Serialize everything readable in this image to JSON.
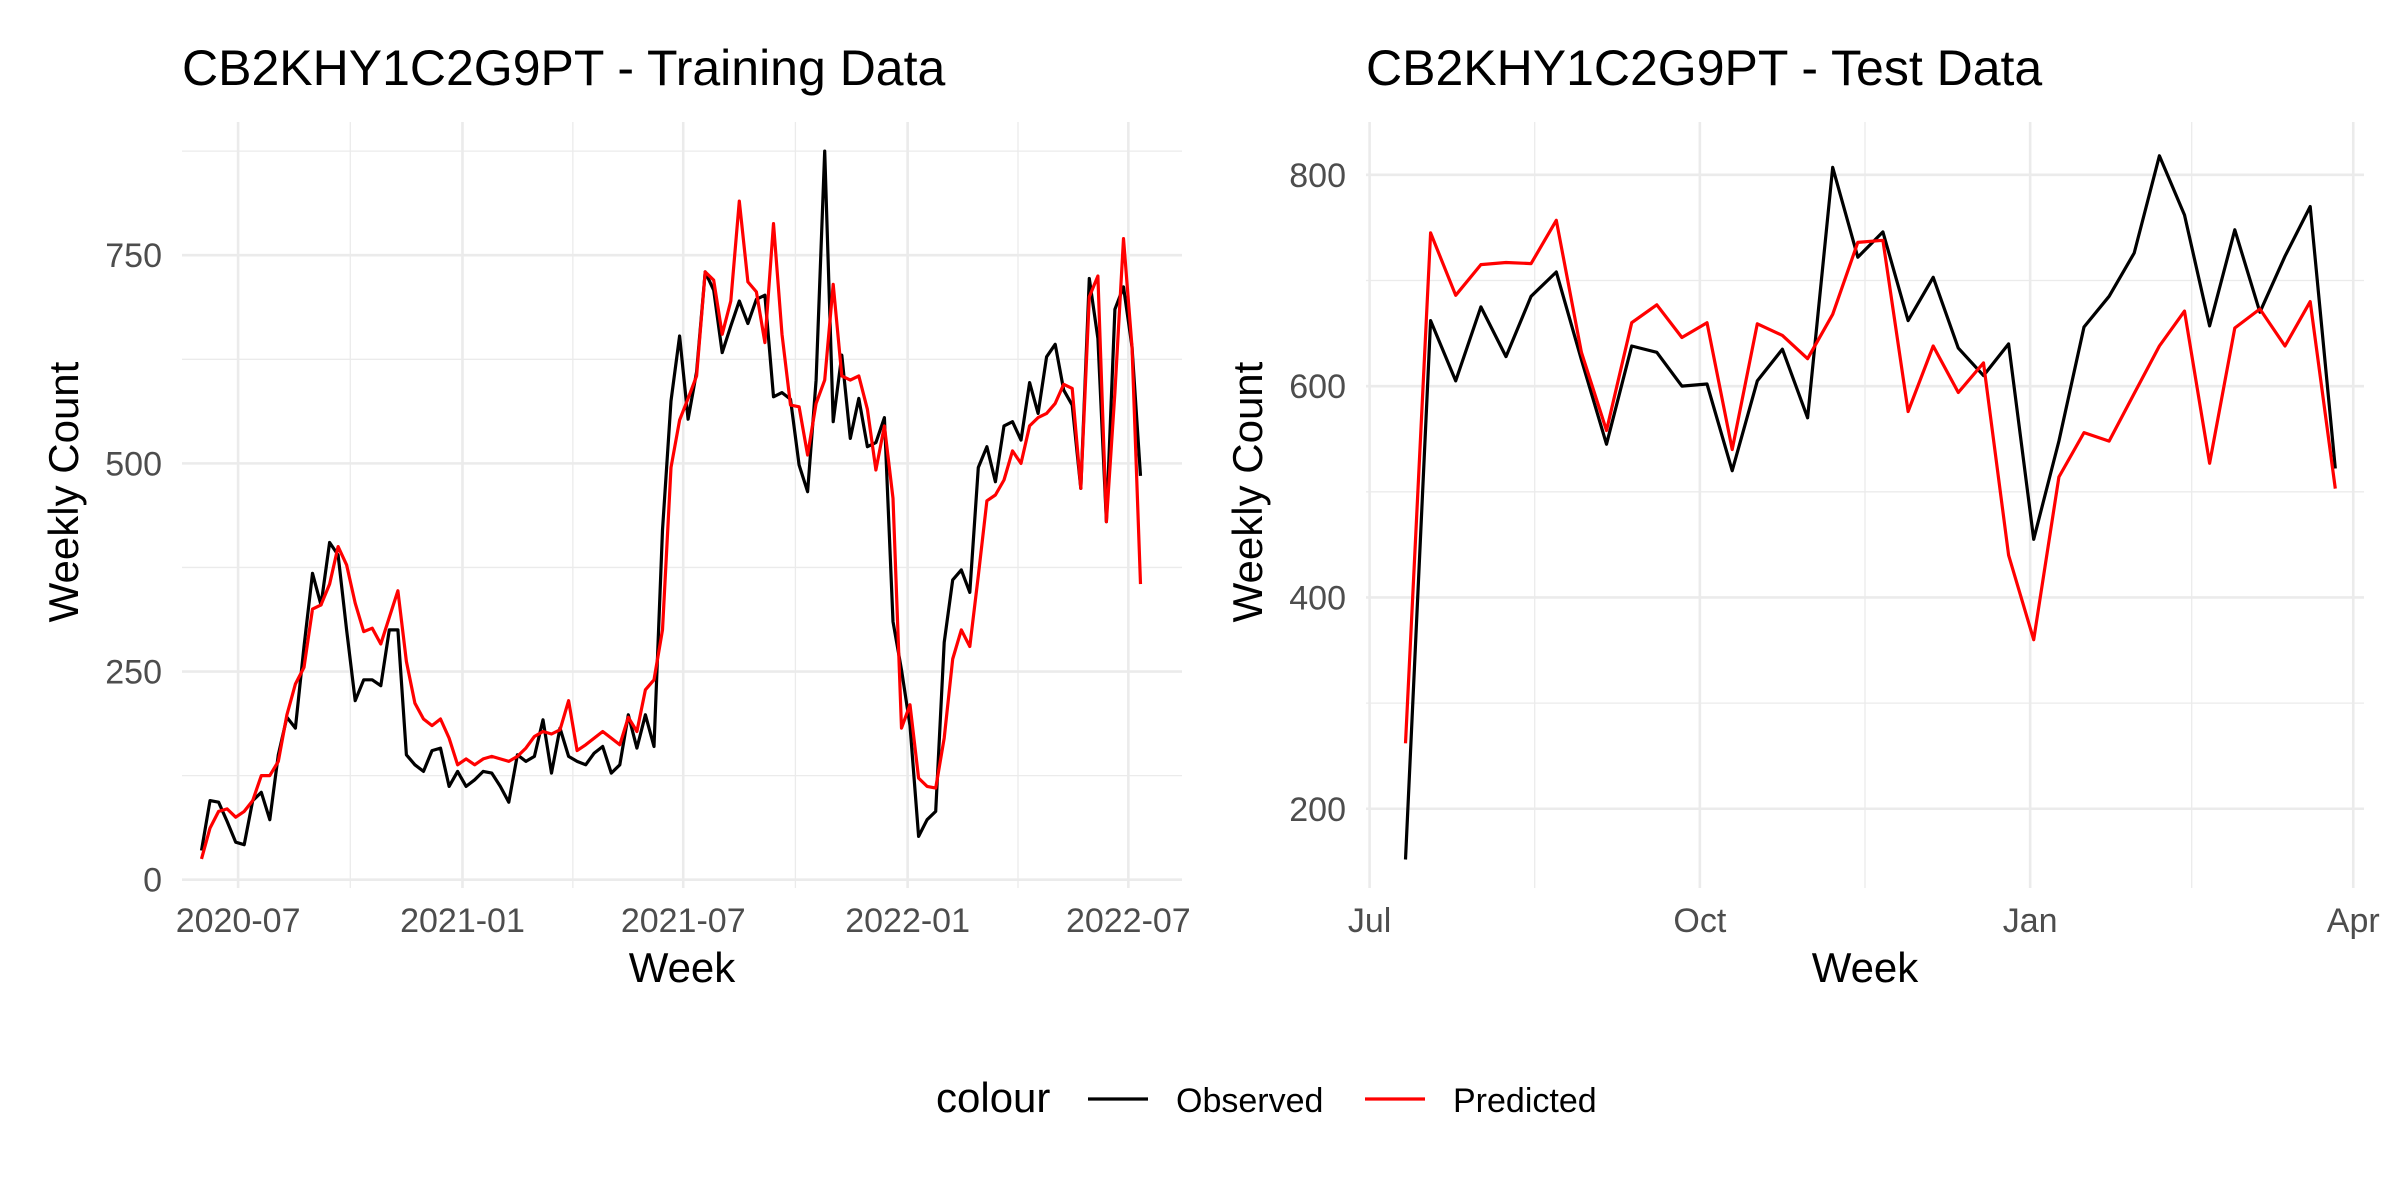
{
  "chart_data": [
    {
      "type": "line",
      "title": "CB2KHY1C2G9PT - Training Data",
      "xlabel": "Week",
      "ylabel": "Weekly Count",
      "x_axis": "date",
      "xlim": [
        "2020-05-16",
        "2022-08-14"
      ],
      "ylim": [
        -10,
        910
      ],
      "x_ticks": [
        {
          "date": "2020-07-01",
          "label": "2020-07"
        },
        {
          "date": "2021-01-01",
          "label": "2021-01"
        },
        {
          "date": "2021-07-01",
          "label": "2021-07"
        },
        {
          "date": "2022-01-01",
          "label": "2022-01"
        },
        {
          "date": "2022-07-01",
          "label": "2022-07"
        }
      ],
      "y_ticks": [
        0,
        250,
        500,
        750
      ],
      "grid": true,
      "x": [
        "2020-06-01",
        "2020-06-08",
        "2020-06-15",
        "2020-06-22",
        "2020-06-29",
        "2020-07-06",
        "2020-07-13",
        "2020-07-20",
        "2020-07-27",
        "2020-08-03",
        "2020-08-10",
        "2020-08-17",
        "2020-08-24",
        "2020-08-31",
        "2020-09-07",
        "2020-09-14",
        "2020-09-21",
        "2020-09-28",
        "2020-10-05",
        "2020-10-12",
        "2020-10-19",
        "2020-10-26",
        "2020-11-02",
        "2020-11-09",
        "2020-11-16",
        "2020-11-23",
        "2020-11-30",
        "2020-12-07",
        "2020-12-14",
        "2020-12-21",
        "2020-12-28",
        "2021-01-04",
        "2021-01-11",
        "2021-01-18",
        "2021-01-25",
        "2021-02-01",
        "2021-02-08",
        "2021-02-15",
        "2021-02-22",
        "2021-03-01",
        "2021-03-08",
        "2021-03-15",
        "2021-03-22",
        "2021-03-29",
        "2021-04-05",
        "2021-04-12",
        "2021-04-19",
        "2021-04-26",
        "2021-05-03",
        "2021-05-10",
        "2021-05-17",
        "2021-05-24",
        "2021-05-31",
        "2021-06-07",
        "2021-06-14",
        "2021-06-21",
        "2021-06-28",
        "2021-07-05",
        "2021-07-12",
        "2021-07-19",
        "2021-07-26",
        "2021-08-02",
        "2021-08-09",
        "2021-08-16",
        "2021-08-23",
        "2021-08-30",
        "2021-09-06",
        "2021-09-13",
        "2021-09-20",
        "2021-09-27",
        "2021-10-04",
        "2021-10-11",
        "2021-10-18",
        "2021-10-25",
        "2021-11-01",
        "2021-11-08",
        "2021-11-15",
        "2021-11-22",
        "2021-11-29",
        "2021-12-06",
        "2021-12-13",
        "2021-12-20",
        "2021-12-27",
        "2022-01-03",
        "2022-01-10",
        "2022-01-17",
        "2022-01-24",
        "2022-01-31",
        "2022-02-07",
        "2022-02-14",
        "2022-02-21",
        "2022-02-28",
        "2022-03-07",
        "2022-03-14",
        "2022-03-21",
        "2022-03-28",
        "2022-04-04",
        "2022-04-11",
        "2022-04-18",
        "2022-04-25",
        "2022-05-02",
        "2022-05-09",
        "2022-05-16",
        "2022-05-23",
        "2022-05-30",
        "2022-06-06",
        "2022-06-13",
        "2022-06-20",
        "2022-06-27",
        "2022-07-04",
        "2022-07-11"
      ],
      "series": [
        {
          "name": "Observed",
          "color": "#000000",
          "values": [
            35,
            95,
            93,
            70,
            45,
            42,
            95,
            105,
            72,
            150,
            195,
            182,
            280,
            368,
            330,
            405,
            390,
            300,
            215,
            240,
            240,
            233,
            300,
            300,
            150,
            138,
            130,
            155,
            158,
            112,
            130,
            112,
            120,
            130,
            128,
            112,
            93,
            150,
            142,
            148,
            192,
            128,
            182,
            148,
            142,
            138,
            152,
            160,
            128,
            138,
            198,
            158,
            198,
            160,
            420,
            575,
            653,
            553,
            610,
            730,
            708,
            633,
            665,
            695,
            668,
            697,
            702,
            580,
            585,
            577,
            498,
            466,
            600,
            875,
            550,
            630,
            530,
            578,
            520,
            525,
            555,
            310,
            252,
            185,
            52,
            72,
            82,
            285,
            360,
            372,
            345,
            495,
            520,
            478,
            545,
            550,
            528,
            597,
            560,
            628,
            643,
            588,
            570,
            470,
            722,
            650,
            430,
            685,
            712,
            640,
            485
          ]
        },
        {
          "name": "Predicted",
          "color": "#ff0000",
          "values": [
            25,
            62,
            82,
            85,
            75,
            82,
            95,
            125,
            125,
            142,
            198,
            235,
            255,
            325,
            330,
            355,
            400,
            378,
            332,
            298,
            302,
            283,
            315,
            347,
            262,
            212,
            193,
            185,
            193,
            170,
            138,
            145,
            138,
            145,
            148,
            145,
            142,
            148,
            158,
            172,
            178,
            175,
            180,
            215,
            155,
            162,
            170,
            178,
            170,
            162,
            195,
            178,
            228,
            240,
            300,
            495,
            552,
            578,
            605,
            730,
            720,
            655,
            695,
            815,
            718,
            706,
            645,
            788,
            655,
            570,
            568,
            510,
            572,
            600,
            715,
            605,
            600,
            605,
            565,
            492,
            545,
            458,
            182,
            210,
            122,
            112,
            110,
            170,
            265,
            300,
            280,
            365,
            455,
            462,
            480,
            515,
            500,
            545,
            555,
            560,
            572,
            595,
            590,
            470,
            700,
            725,
            430,
            585,
            770,
            640,
            355
          ]
        }
      ]
    },
    {
      "type": "line",
      "title": "CB2KHY1C2G9PT - Test Data",
      "xlabel": "Week",
      "ylabel": "Weekly Count",
      "x_axis": "date",
      "xlim": [
        "2022-06-30",
        "2023-04-04"
      ],
      "ylim": [
        125,
        850
      ],
      "x_ticks": [
        {
          "date": "2022-07-01",
          "label": "Jul"
        },
        {
          "date": "2022-10-01",
          "label": "Oct"
        },
        {
          "date": "2023-01-01",
          "label": "Jan"
        },
        {
          "date": "2023-04-01",
          "label": "Apr"
        }
      ],
      "y_ticks": [
        200,
        400,
        600,
        800
      ],
      "grid": true,
      "x": [
        "2022-07-11",
        "2022-07-18",
        "2022-07-25",
        "2022-08-01",
        "2022-08-08",
        "2022-08-15",
        "2022-08-22",
        "2022-08-29",
        "2022-09-05",
        "2022-09-12",
        "2022-09-19",
        "2022-09-26",
        "2022-10-03",
        "2022-10-10",
        "2022-10-17",
        "2022-10-24",
        "2022-10-31",
        "2022-11-07",
        "2022-11-14",
        "2022-11-21",
        "2022-11-28",
        "2022-12-05",
        "2022-12-12",
        "2022-12-19",
        "2022-12-26",
        "2023-01-02",
        "2023-01-09",
        "2023-01-16",
        "2023-01-23",
        "2023-01-30",
        "2023-02-06",
        "2023-02-13",
        "2023-02-20",
        "2023-02-27",
        "2023-03-06",
        "2023-03-13",
        "2023-03-20",
        "2023-03-27"
      ],
      "series": [
        {
          "name": "Observed",
          "color": "#000000",
          "values": [
            152,
            662,
            605,
            675,
            628,
            685,
            708,
            625,
            545,
            638,
            632,
            600,
            602,
            520,
            605,
            635,
            570,
            807,
            722,
            746,
            662,
            703,
            636,
            610,
            640,
            455,
            548,
            656,
            685,
            726,
            818,
            762,
            657,
            748,
            670,
            723,
            770,
            522
          ]
        },
        {
          "name": "Predicted",
          "color": "#ff0000",
          "values": [
            262,
            745,
            686,
            715,
            717,
            716,
            757,
            632,
            558,
            660,
            677,
            646,
            660,
            540,
            659,
            648,
            626,
            668,
            736,
            738,
            576,
            638,
            594,
            622,
            440,
            360,
            514,
            556,
            548,
            593,
            638,
            671,
            527,
            655,
            673,
            638,
            680,
            503
          ]
        }
      ]
    }
  ],
  "legend": {
    "title": "colour",
    "position": "bottom",
    "entries": [
      {
        "label": "Observed",
        "color": "#000000"
      },
      {
        "label": "Predicted",
        "color": "#ff0000"
      }
    ]
  }
}
